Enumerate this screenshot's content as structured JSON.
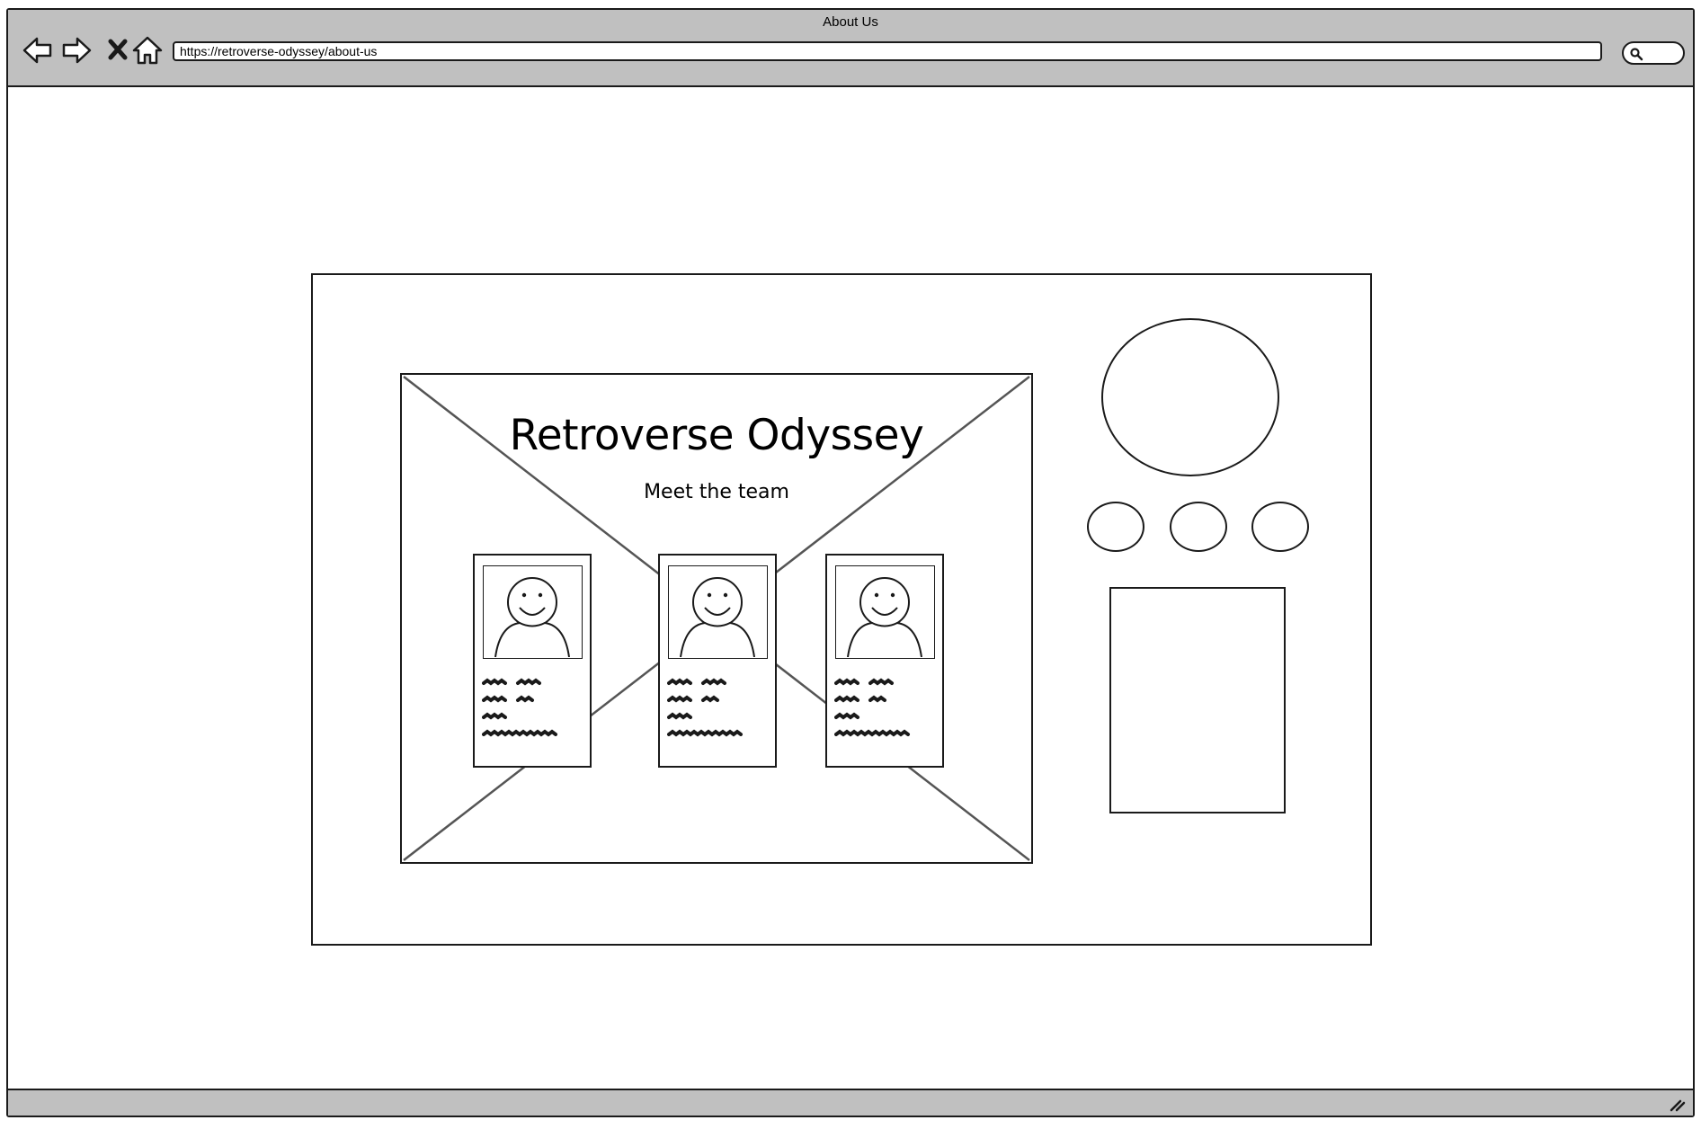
{
  "window": {
    "title": "About Us",
    "url": "https://retroverse-odyssey/about-us"
  },
  "toolbar": {
    "icons": [
      "back-arrow-icon",
      "forward-arrow-icon",
      "close-x-icon",
      "home-icon",
      "search-icon",
      "resize-grip-icon"
    ]
  },
  "hero": {
    "title": "Retroverse Odyssey",
    "subtitle": "Meet the team"
  },
  "team_cards": [
    {
      "name": "team-card-1"
    },
    {
      "name": "team-card-2"
    },
    {
      "name": "team-card-3"
    }
  ],
  "colors": {
    "chrome": "#c0c0c0",
    "stroke": "#1a1a1a",
    "background": "#ffffff"
  }
}
